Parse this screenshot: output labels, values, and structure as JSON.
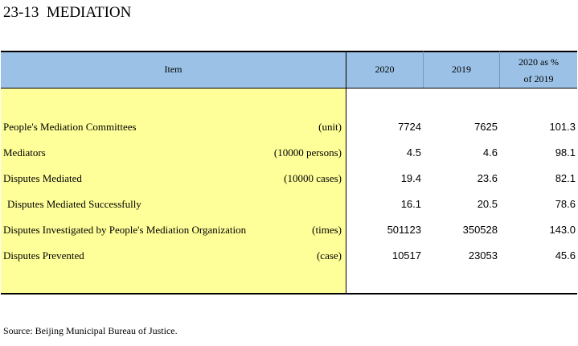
{
  "title": "23-13  MEDIATION",
  "table": {
    "headers": {
      "item": "Item",
      "col_2020": "2020",
      "col_2019": "2019",
      "col_pct_line1": "2020 as %",
      "col_pct_line2": "of 2019"
    },
    "rows": [
      {
        "label": "People's Mediation Committees",
        "unit": "(unit)",
        "v2020": "7724",
        "v2019": "7625",
        "pct": "101.3",
        "indent": false
      },
      {
        "label": "Mediators",
        "unit": "(10000 persons)",
        "v2020": "4.5",
        "v2019": "4.6",
        "pct": "98.1",
        "indent": false
      },
      {
        "label": "Disputes Mediated",
        "unit": "(10000 cases)",
        "v2020": "19.4",
        "v2019": "23.6",
        "pct": "82.1",
        "indent": false
      },
      {
        "label": "Disputes Mediated Successfully",
        "unit": "",
        "v2020": "16.1",
        "v2019": "20.5",
        "pct": "78.6",
        "indent": true
      },
      {
        "label": "Disputes Investigated by People's Mediation Organization",
        "unit": "(times)",
        "v2020": "501123",
        "v2019": "350528",
        "pct": "143.0",
        "indent": false
      },
      {
        "label": "Disputes Prevented",
        "unit": "(case)",
        "v2020": "10517",
        "v2019": "23053",
        "pct": "45.6",
        "indent": false
      }
    ]
  },
  "source": "Source: Beijing Municipal Bureau of Justice.",
  "colors": {
    "header_bg": "#9bc2e6",
    "label_bg": "#ffff99"
  }
}
